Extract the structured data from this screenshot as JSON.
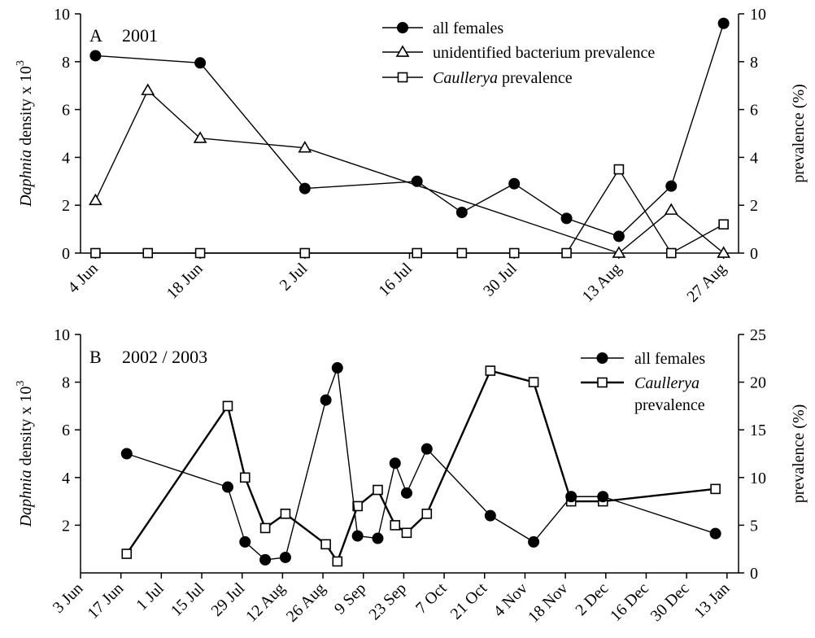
{
  "chart_data": [
    {
      "panel": "A",
      "type": "line",
      "panel_label": "A",
      "year_label": "2001",
      "ylabel": "Daphnia density x 10",
      "ylabel_italic": "Daphnia",
      "ylabel_rest": " density x 10",
      "ylabel_exp": "3",
      "y2label": "prevalence (%)",
      "ylim": [
        0,
        10
      ],
      "y2lim": [
        0,
        10
      ],
      "yticks": [
        "0",
        "2",
        "4",
        "6",
        "8",
        "10"
      ],
      "y2ticks": [
        "0",
        "2",
        "4",
        "6",
        "8",
        "10"
      ],
      "x_tick_labels": [
        "4 Jun",
        "18 Jun",
        "2 Jul",
        "16 Jul",
        "30 Jul",
        "13 Aug",
        "27 Aug"
      ],
      "x_tick_days": [
        0,
        14,
        28,
        42,
        56,
        70,
        84
      ],
      "xlim": [
        -2,
        86
      ],
      "grid": false,
      "legend_position": "top-right",
      "series": [
        {
          "name": "all females",
          "marker": "filled-circle",
          "axis": "left",
          "x_days": [
            0,
            14,
            28,
            43,
            49,
            56,
            63,
            70,
            77,
            84
          ],
          "dates": [
            "4 Jun",
            "18 Jun",
            "2 Jul",
            "17 Jul",
            "23 Jul",
            "30 Jul",
            "6 Aug",
            "13 Aug",
            "20 Aug",
            "27 Aug"
          ],
          "values": [
            8.25,
            7.95,
            2.7,
            3.0,
            1.7,
            2.9,
            1.45,
            0.7,
            2.8,
            9.6
          ]
        },
        {
          "name": "unidentified bacterium prevalence",
          "marker": "open-triangle",
          "axis": "right",
          "x_days": [
            0,
            7,
            14,
            28,
            70,
            77,
            84
          ],
          "dates": [
            "4 Jun",
            "11 Jun",
            "18 Jun",
            "2 Jul",
            "13 Aug",
            "20 Aug",
            "27 Aug"
          ],
          "values": [
            2.2,
            6.8,
            4.8,
            4.4,
            0,
            1.8,
            0
          ]
        },
        {
          "name": "Caullerya prevalence",
          "marker": "open-square",
          "axis": "right",
          "x_days": [
            0,
            7,
            14,
            28,
            43,
            49,
            56,
            63,
            70,
            77,
            84
          ],
          "dates": [
            "4 Jun",
            "11 Jun",
            "18 Jun",
            "2 Jul",
            "17 Jul",
            "23 Jul",
            "30 Jul",
            "6 Aug",
            "13 Aug",
            "20 Aug",
            "27 Aug"
          ],
          "values": [
            0,
            0,
            0,
            0,
            0,
            0,
            0,
            0,
            3.5,
            0,
            1.2
          ]
        }
      ],
      "legend": [
        {
          "text": "all females",
          "italic_part": "",
          "marker": "filled-circle"
        },
        {
          "text": "unidentified bacterium prevalence",
          "italic_part": "",
          "marker": "open-triangle"
        },
        {
          "text": " prevalence",
          "italic_part": "Caullerya",
          "marker": "open-square"
        }
      ]
    },
    {
      "panel": "B",
      "type": "line",
      "panel_label": "B",
      "year_label": "2002 / 2003",
      "ylabel": "Daphnia density x 10",
      "ylabel_italic": "Daphnia",
      "ylabel_rest": " density x 10",
      "ylabel_exp": "3",
      "y2label": "prevalence (%)",
      "ylim": [
        0,
        10
      ],
      "y2lim": [
        0,
        25
      ],
      "yticks": [
        "2",
        "4",
        "6",
        "8",
        "10"
      ],
      "y2ticks": [
        "0",
        "5",
        "10",
        "15",
        "20",
        "25"
      ],
      "x_tick_labels": [
        "3 Jun",
        "17 Jun",
        "1 Jul",
        "15 Jul",
        "29 Jul",
        "12 Aug",
        "26 Aug",
        "9 Sep",
        "23 Sep",
        "7 Oct",
        "21 Oct",
        "4 Nov",
        "18 Nov",
        "2 Dec",
        "16 Dec",
        "30 Dec",
        "13 Jan"
      ],
      "x_tick_days": [
        0,
        14,
        28,
        42,
        56,
        70,
        84,
        98,
        112,
        126,
        140,
        154,
        168,
        182,
        196,
        210,
        224
      ],
      "xlim": [
        0,
        228
      ],
      "grid": false,
      "legend_position": "top-right",
      "series": [
        {
          "name": "all females",
          "marker": "filled-circle",
          "axis": "left",
          "x_days": [
            16,
            51,
            57,
            64,
            71,
            85,
            89,
            96,
            103,
            109,
            113,
            120,
            142,
            157,
            170,
            181,
            220
          ],
          "dates": [
            "19 Jun",
            "24 Jul",
            "30 Jul",
            "6 Aug",
            "13 Aug",
            "27 Aug",
            "31 Aug",
            "7 Sep",
            "14 Sep",
            "20 Sep",
            "24 Sep",
            "1 Oct",
            "23 Oct",
            "7 Nov",
            "20 Nov",
            "1 Dec",
            "9 Jan"
          ],
          "values": [
            5.0,
            3.6,
            1.3,
            0.55,
            0.65,
            7.25,
            8.6,
            1.55,
            1.45,
            4.6,
            3.35,
            5.2,
            2.4,
            1.3,
            3.2,
            3.2,
            1.65
          ]
        },
        {
          "name": "Caullerya prevalence",
          "marker": "open-square",
          "axis": "right",
          "x_days": [
            16,
            51,
            57,
            64,
            71,
            85,
            89,
            96,
            103,
            109,
            113,
            120,
            142,
            157,
            170,
            181,
            220
          ],
          "dates": [
            "19 Jun",
            "24 Jul",
            "30 Jul",
            "6 Aug",
            "13 Aug",
            "27 Aug",
            "31 Aug",
            "7 Sep",
            "14 Sep",
            "20 Sep",
            "24 Sep",
            "1 Oct",
            "23 Oct",
            "7 Nov",
            "20 Nov",
            "1 Dec",
            "9 Jan"
          ],
          "values": [
            2.0,
            17.5,
            10.0,
            4.7,
            6.2,
            3.0,
            1.2,
            7.0,
            8.7,
            5.0,
            4.2,
            6.2,
            21.2,
            20.0,
            7.5,
            7.5,
            8.8
          ]
        }
      ],
      "legend": [
        {
          "text": "all females",
          "italic_part": "",
          "marker": "filled-circle"
        },
        {
          "text": "",
          "italic_part": "Caullerya",
          "marker": "open-square",
          "second_line": "prevalence"
        }
      ]
    }
  ]
}
